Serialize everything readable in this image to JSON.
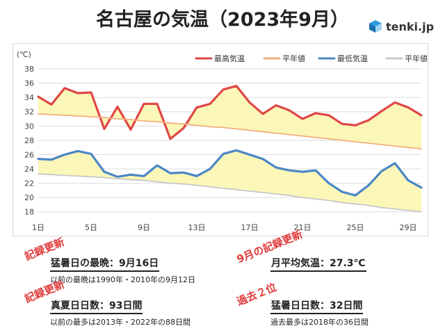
{
  "title": "名古屋の気温（2023年9月）",
  "logo_text": "tenki.jp",
  "stamps": {
    "record1": "記録更新",
    "record2": "9月の記録更新",
    "record3": "記録更新",
    "second_place": "過去２位"
  },
  "stats": [
    {
      "main": "猛暑日の最晩：9月16日",
      "sub": "以前の最晩は1990年・2010年の9月12日"
    },
    {
      "main": "月平均気温：27.3℃",
      "sub": ""
    },
    {
      "main": "真夏日日数：93日間",
      "sub": "以前の最多は2013年・2022年の88日間"
    },
    {
      "main": "猛暑日日数：32日間",
      "sub": "過去最多は2018年の36日間"
    }
  ],
  "chart_data": {
    "type": "line",
    "unit_label": "(℃)",
    "x": [
      1,
      2,
      3,
      4,
      5,
      6,
      7,
      8,
      9,
      10,
      11,
      12,
      13,
      14,
      15,
      16,
      17,
      18,
      19,
      20,
      21,
      22,
      23,
      24,
      25,
      26,
      27,
      28,
      29,
      30
    ],
    "x_tick_labels": [
      "1日",
      "5日",
      "9日",
      "13日",
      "17日",
      "21日",
      "25日",
      "29日"
    ],
    "x_tick_values": [
      1,
      5,
      9,
      13,
      17,
      21,
      25,
      29
    ],
    "y_ticks": [
      18,
      20,
      22,
      24,
      26,
      28,
      30,
      32,
      34,
      36,
      38
    ],
    "ylim": [
      17,
      38
    ],
    "grid": true,
    "legend_position": "top-right",
    "series": [
      {
        "name": "最高気温",
        "color": "#e04646",
        "values": [
          34.1,
          33.0,
          35.3,
          34.6,
          34.7,
          29.6,
          32.7,
          29.5,
          33.1,
          33.1,
          28.2,
          29.7,
          32.6,
          33.1,
          35.1,
          35.6,
          33.3,
          31.7,
          32.9,
          32.2,
          31.0,
          31.8,
          31.5,
          30.3,
          30.1,
          30.8,
          32.1,
          33.3,
          32.6,
          31.5
        ]
      },
      {
        "name": "平年値",
        "color": "#f2b07e",
        "values": [
          31.7,
          31.6,
          31.5,
          31.4,
          31.3,
          31.2,
          31.0,
          30.9,
          30.7,
          30.6,
          30.4,
          30.3,
          30.1,
          29.9,
          29.8,
          29.6,
          29.4,
          29.2,
          29.0,
          28.8,
          28.6,
          28.4,
          28.2,
          28.0,
          27.8,
          27.6,
          27.4,
          27.2,
          27.0,
          26.8
        ]
      },
      {
        "name": "最低気温",
        "color": "#4a86c5",
        "values": [
          25.4,
          25.3,
          26.0,
          26.5,
          26.1,
          23.6,
          22.9,
          23.2,
          23.0,
          24.5,
          23.4,
          23.5,
          23.0,
          24.0,
          26.1,
          26.6,
          26.0,
          25.4,
          24.2,
          23.8,
          23.6,
          23.8,
          22.0,
          20.8,
          20.3,
          21.7,
          23.7,
          24.8,
          22.4,
          21.4
        ]
      },
      {
        "name": "平年値",
        "color": "#c8c8c8",
        "values": [
          23.3,
          23.2,
          23.1,
          23.0,
          22.9,
          22.8,
          22.6,
          22.5,
          22.4,
          22.2,
          22.0,
          21.9,
          21.7,
          21.5,
          21.3,
          21.1,
          20.9,
          20.7,
          20.5,
          20.3,
          20.0,
          19.8,
          19.6,
          19.3,
          19.1,
          18.9,
          18.6,
          18.4,
          18.2,
          18.0
        ]
      }
    ]
  }
}
